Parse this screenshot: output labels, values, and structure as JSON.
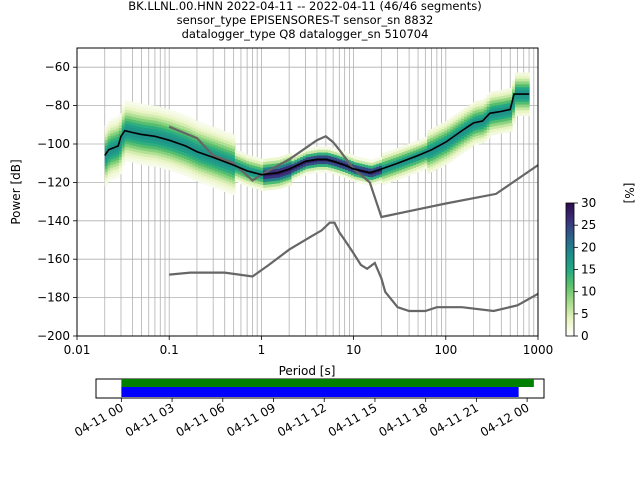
{
  "title": {
    "line1": "BK.LLNL.00.HNN   2022-04-11 -- 2022-04-11  (46/46 segments)",
    "line2": "sensor_type EPISENSORES-T sensor_sn 8832",
    "line3": "datalogger_type Q8 datalogger_sn 510704"
  },
  "chart_data": [
    {
      "type": "heatmap",
      "xlabel": "Period [s]",
      "ylabel": "Power [dB]",
      "xscale": "log",
      "xlim": [
        0.01,
        1000
      ],
      "ylim": [
        -200,
        -50
      ],
      "xticks": [
        {
          "v": 0.01,
          "label": "0.01"
        },
        {
          "v": 0.1,
          "label": "0.1"
        },
        {
          "v": 1,
          "label": "1"
        },
        {
          "v": 10,
          "label": "10"
        },
        {
          "v": 100,
          "label": "100"
        },
        {
          "v": 1000,
          "label": "1000"
        }
      ],
      "yticks": [
        {
          "v": -60,
          "label": "−60"
        },
        {
          "v": -80,
          "label": "−80"
        },
        {
          "v": -100,
          "label": "−100"
        },
        {
          "v": -120,
          "label": "−120"
        },
        {
          "v": -140,
          "label": "−140"
        },
        {
          "v": -160,
          "label": "−160"
        },
        {
          "v": -180,
          "label": "−180"
        },
        {
          "v": -200,
          "label": "−200"
        }
      ],
      "grid": true,
      "colorbar": {
        "label": "[%]",
        "range": [
          0,
          30
        ],
        "ticks": [
          {
            "v": 0,
            "label": "0"
          },
          {
            "v": 5,
            "label": "5"
          },
          {
            "v": 10,
            "label": "10"
          },
          {
            "v": 15,
            "label": "15"
          },
          {
            "v": 20,
            "label": "20"
          },
          {
            "v": 25,
            "label": "25"
          },
          {
            "v": 30,
            "label": "30"
          }
        ],
        "colors": [
          "#ffffff",
          "#e8f4c0",
          "#a8dc8c",
          "#5ec26a",
          "#22a884",
          "#1f8a8c",
          "#2e5f8a",
          "#3b2f7a",
          "#2d0a4e"
        ]
      },
      "mode_curve": [
        [
          0.02,
          -106
        ],
        [
          0.022,
          -103
        ],
        [
          0.025,
          -102
        ],
        [
          0.028,
          -101
        ],
        [
          0.03,
          -96
        ],
        [
          0.033,
          -93
        ],
        [
          0.04,
          -94
        ],
        [
          0.05,
          -95
        ],
        [
          0.07,
          -96
        ],
        [
          0.1,
          -98
        ],
        [
          0.15,
          -101
        ],
        [
          0.2,
          -104
        ],
        [
          0.3,
          -107
        ],
        [
          0.5,
          -111
        ],
        [
          0.7,
          -114
        ],
        [
          1,
          -116
        ],
        [
          1.5,
          -115
        ],
        [
          2,
          -113
        ],
        [
          3,
          -109
        ],
        [
          4,
          -108
        ],
        [
          5,
          -108
        ],
        [
          6,
          -109
        ],
        [
          8,
          -111
        ],
        [
          10,
          -113
        ],
        [
          15,
          -115
        ],
        [
          20,
          -113
        ],
        [
          30,
          -110
        ],
        [
          50,
          -106
        ],
        [
          70,
          -103
        ],
        [
          100,
          -99
        ],
        [
          150,
          -93
        ],
        [
          200,
          -89
        ],
        [
          250,
          -88
        ],
        [
          300,
          -84
        ],
        [
          400,
          -83
        ],
        [
          500,
          -82
        ],
        [
          550,
          -74
        ],
        [
          700,
          -74
        ],
        [
          800,
          -74
        ]
      ],
      "nhnm": [
        [
          0.1,
          -91
        ],
        [
          0.2,
          -97
        ],
        [
          0.25,
          -102
        ],
        [
          0.3,
          -106
        ],
        [
          0.5,
          -110
        ],
        [
          0.8,
          -119
        ],
        [
          1,
          -116
        ],
        [
          2,
          -108
        ],
        [
          4,
          -98
        ],
        [
          5,
          -96
        ],
        [
          6,
          -99
        ],
        [
          7,
          -103
        ],
        [
          10,
          -113
        ],
        [
          15,
          -120
        ],
        [
          20,
          -138
        ],
        [
          50,
          -134
        ],
        [
          100,
          -131
        ],
        [
          350,
          -126
        ],
        [
          1000,
          -111
        ]
      ],
      "nlnm": [
        [
          0.1,
          -168
        ],
        [
          0.17,
          -167
        ],
        [
          0.4,
          -167
        ],
        [
          0.8,
          -169
        ],
        [
          1.2,
          -163
        ],
        [
          2,
          -155
        ],
        [
          3.5,
          -148
        ],
        [
          4.5,
          -145
        ],
        [
          5.5,
          -141
        ],
        [
          6.2,
          -141
        ],
        [
          7,
          -146
        ],
        [
          8,
          -150
        ],
        [
          10,
          -157
        ],
        [
          12,
          -163
        ],
        [
          14,
          -165
        ],
        [
          17,
          -162
        ],
        [
          20,
          -170
        ],
        [
          22,
          -177
        ],
        [
          30,
          -185
        ],
        [
          40,
          -187
        ],
        [
          60,
          -187
        ],
        [
          80,
          -185
        ],
        [
          150,
          -185
        ],
        [
          330,
          -187
        ],
        [
          600,
          -184
        ],
        [
          1000,
          -178
        ]
      ]
    },
    {
      "type": "timeline",
      "xlim_hours": [
        -1.5,
        25
      ],
      "xticks": [
        {
          "h": 0,
          "label": "04-11 00"
        },
        {
          "h": 3,
          "label": "04-11 03"
        },
        {
          "h": 6,
          "label": "04-11 06"
        },
        {
          "h": 9,
          "label": "04-11 09"
        },
        {
          "h": 12,
          "label": "04-11 12"
        },
        {
          "h": 15,
          "label": "04-11 15"
        },
        {
          "h": 18,
          "label": "04-11 18"
        },
        {
          "h": 21,
          "label": "04-11 21"
        },
        {
          "h": 24,
          "label": "04-12 00"
        }
      ],
      "bars": [
        {
          "color": "#008000",
          "start": 0,
          "end": 24.4
        },
        {
          "color": "#0000ff",
          "start": 0,
          "end": 23.5
        }
      ]
    }
  ]
}
